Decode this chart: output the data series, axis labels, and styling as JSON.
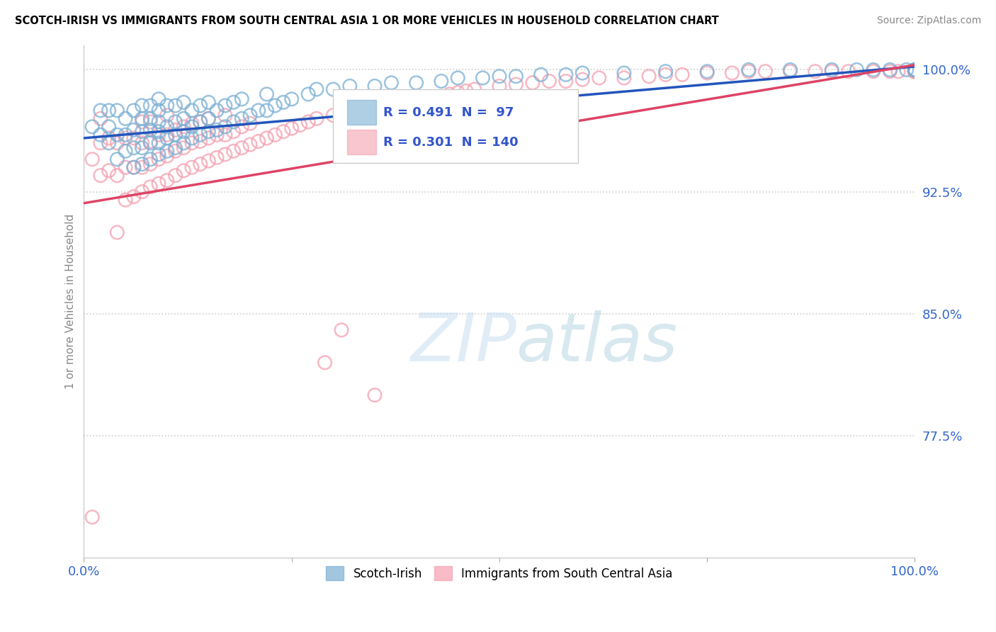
{
  "title": "SCOTCH-IRISH VS IMMIGRANTS FROM SOUTH CENTRAL ASIA 1 OR MORE VEHICLES IN HOUSEHOLD CORRELATION CHART",
  "source": "Source: ZipAtlas.com",
  "ylabel": "1 or more Vehicles in Household",
  "y_tick_labels": [
    "77.5%",
    "85.0%",
    "92.5%",
    "100.0%"
  ],
  "y_tick_values": [
    0.775,
    0.85,
    0.925,
    1.0
  ],
  "x_range": [
    0.0,
    1.0
  ],
  "y_range": [
    0.7,
    1.015
  ],
  "legend_label_blue": "Scotch-Irish",
  "legend_label_pink": "Immigrants from South Central Asia",
  "r_blue": 0.491,
  "n_blue": 97,
  "r_pink": 0.301,
  "n_pink": 140,
  "blue_color": "#7BAFD4",
  "pink_color": "#F4A0B0",
  "blue_line_color": "#2255BB",
  "pink_line_color": "#DD4466",
  "watermark_zip": "ZIP",
  "watermark_atlas": "atlas",
  "blue_line_x0": 0.0,
  "blue_line_y0": 0.958,
  "blue_line_x1": 1.0,
  "blue_line_y1": 1.002,
  "pink_line_x0": 0.0,
  "pink_line_y0": 0.918,
  "pink_line_x1": 1.0,
  "pink_line_y1": 1.003,
  "blue_scatter_x": [
    0.01,
    0.02,
    0.02,
    0.03,
    0.03,
    0.03,
    0.04,
    0.04,
    0.04,
    0.05,
    0.05,
    0.05,
    0.06,
    0.06,
    0.06,
    0.06,
    0.07,
    0.07,
    0.07,
    0.07,
    0.07,
    0.08,
    0.08,
    0.08,
    0.08,
    0.08,
    0.09,
    0.09,
    0.09,
    0.09,
    0.09,
    0.09,
    0.1,
    0.1,
    0.1,
    0.1,
    0.11,
    0.11,
    0.11,
    0.11,
    0.12,
    0.12,
    0.12,
    0.12,
    0.13,
    0.13,
    0.13,
    0.14,
    0.14,
    0.14,
    0.15,
    0.15,
    0.15,
    0.16,
    0.16,
    0.17,
    0.17,
    0.18,
    0.18,
    0.19,
    0.19,
    0.2,
    0.21,
    0.22,
    0.22,
    0.23,
    0.24,
    0.25,
    0.27,
    0.28,
    0.3,
    0.32,
    0.35,
    0.37,
    0.4,
    0.43,
    0.45,
    0.48,
    0.5,
    0.52,
    0.55,
    0.58,
    0.6,
    0.65,
    0.7,
    0.75,
    0.8,
    0.85,
    0.9,
    0.93,
    0.95,
    0.97,
    0.99,
    1.0,
    1.0,
    1.0,
    1.0
  ],
  "blue_scatter_y": [
    0.965,
    0.96,
    0.975,
    0.955,
    0.965,
    0.975,
    0.945,
    0.96,
    0.975,
    0.95,
    0.96,
    0.97,
    0.94,
    0.952,
    0.963,
    0.975,
    0.942,
    0.952,
    0.962,
    0.97,
    0.978,
    0.945,
    0.955,
    0.963,
    0.97,
    0.978,
    0.948,
    0.955,
    0.962,
    0.968,
    0.975,
    0.982,
    0.95,
    0.958,
    0.965,
    0.978,
    0.952,
    0.96,
    0.968,
    0.978,
    0.955,
    0.962,
    0.97,
    0.98,
    0.958,
    0.965,
    0.975,
    0.96,
    0.968,
    0.978,
    0.962,
    0.97,
    0.98,
    0.963,
    0.975,
    0.965,
    0.978,
    0.968,
    0.98,
    0.97,
    0.982,
    0.972,
    0.975,
    0.975,
    0.985,
    0.978,
    0.98,
    0.982,
    0.985,
    0.988,
    0.988,
    0.99,
    0.99,
    0.992,
    0.992,
    0.993,
    0.995,
    0.995,
    0.996,
    0.996,
    0.997,
    0.997,
    0.998,
    0.998,
    0.999,
    0.999,
    1.0,
    1.0,
    1.0,
    1.0,
    1.0,
    1.0,
    1.0,
    1.0,
    1.0,
    1.0,
    1.0
  ],
  "pink_scatter_x": [
    0.01,
    0.01,
    0.02,
    0.02,
    0.02,
    0.03,
    0.03,
    0.04,
    0.04,
    0.04,
    0.05,
    0.05,
    0.05,
    0.06,
    0.06,
    0.06,
    0.07,
    0.07,
    0.07,
    0.07,
    0.08,
    0.08,
    0.08,
    0.08,
    0.09,
    0.09,
    0.09,
    0.1,
    0.1,
    0.1,
    0.1,
    0.11,
    0.11,
    0.11,
    0.12,
    0.12,
    0.12,
    0.13,
    0.13,
    0.13,
    0.14,
    0.14,
    0.14,
    0.15,
    0.15,
    0.15,
    0.16,
    0.16,
    0.17,
    0.17,
    0.17,
    0.18,
    0.18,
    0.19,
    0.19,
    0.2,
    0.2,
    0.21,
    0.22,
    0.23,
    0.24,
    0.25,
    0.26,
    0.27,
    0.28,
    0.29,
    0.3,
    0.31,
    0.32,
    0.33,
    0.34,
    0.35,
    0.36,
    0.37,
    0.38,
    0.39,
    0.4,
    0.42,
    0.43,
    0.44,
    0.45,
    0.46,
    0.47,
    0.48,
    0.5,
    0.52,
    0.54,
    0.56,
    0.58,
    0.6,
    0.62,
    0.65,
    0.68,
    0.7,
    0.72,
    0.75,
    0.78,
    0.8,
    0.82,
    0.85,
    0.88,
    0.9,
    0.92,
    0.95,
    0.97,
    0.98,
    1.0,
    1.0,
    1.0,
    1.0,
    1.0,
    1.0,
    1.0,
    1.0,
    1.0,
    1.0,
    1.0,
    1.0,
    1.0,
    1.0,
    1.0,
    1.0,
    1.0,
    1.0,
    1.0,
    1.0,
    1.0,
    1.0,
    1.0,
    1.0,
    1.0,
    1.0,
    1.0,
    1.0,
    1.0,
    1.0,
    1.0,
    1.0,
    1.0,
    1.0
  ],
  "pink_scatter_y": [
    0.725,
    0.945,
    0.935,
    0.955,
    0.97,
    0.938,
    0.958,
    0.9,
    0.935,
    0.955,
    0.92,
    0.94,
    0.958,
    0.922,
    0.94,
    0.958,
    0.925,
    0.94,
    0.955,
    0.968,
    0.928,
    0.942,
    0.956,
    0.968,
    0.93,
    0.945,
    0.96,
    0.932,
    0.947,
    0.96,
    0.972,
    0.935,
    0.95,
    0.963,
    0.938,
    0.952,
    0.965,
    0.94,
    0.955,
    0.967,
    0.942,
    0.956,
    0.968,
    0.944,
    0.958,
    0.97,
    0.946,
    0.96,
    0.948,
    0.96,
    0.972,
    0.95,
    0.962,
    0.952,
    0.965,
    0.954,
    0.967,
    0.956,
    0.958,
    0.96,
    0.962,
    0.964,
    0.966,
    0.968,
    0.97,
    0.82,
    0.972,
    0.84,
    0.973,
    0.975,
    0.976,
    0.8,
    0.977,
    0.978,
    0.979,
    0.98,
    0.981,
    0.982,
    0.983,
    0.985,
    0.986,
    0.987,
    0.988,
    0.98,
    0.99,
    0.991,
    0.992,
    0.993,
    0.993,
    0.994,
    0.995,
    0.995,
    0.996,
    0.997,
    0.997,
    0.998,
    0.998,
    0.999,
    0.999,
    0.999,
    0.999,
    0.999,
    0.999,
    0.999,
    0.999,
    0.999,
    0.999,
    0.999,
    0.999,
    0.999,
    0.999,
    0.999,
    0.999,
    0.999,
    0.999,
    0.999,
    0.999,
    0.999,
    0.999,
    0.999,
    0.999,
    0.999,
    0.999,
    0.999,
    0.999,
    0.999,
    0.999,
    0.999,
    0.999,
    0.999,
    0.999,
    0.999,
    0.999,
    0.999,
    0.999,
    0.999,
    0.999,
    0.999,
    0.999,
    0.999
  ]
}
